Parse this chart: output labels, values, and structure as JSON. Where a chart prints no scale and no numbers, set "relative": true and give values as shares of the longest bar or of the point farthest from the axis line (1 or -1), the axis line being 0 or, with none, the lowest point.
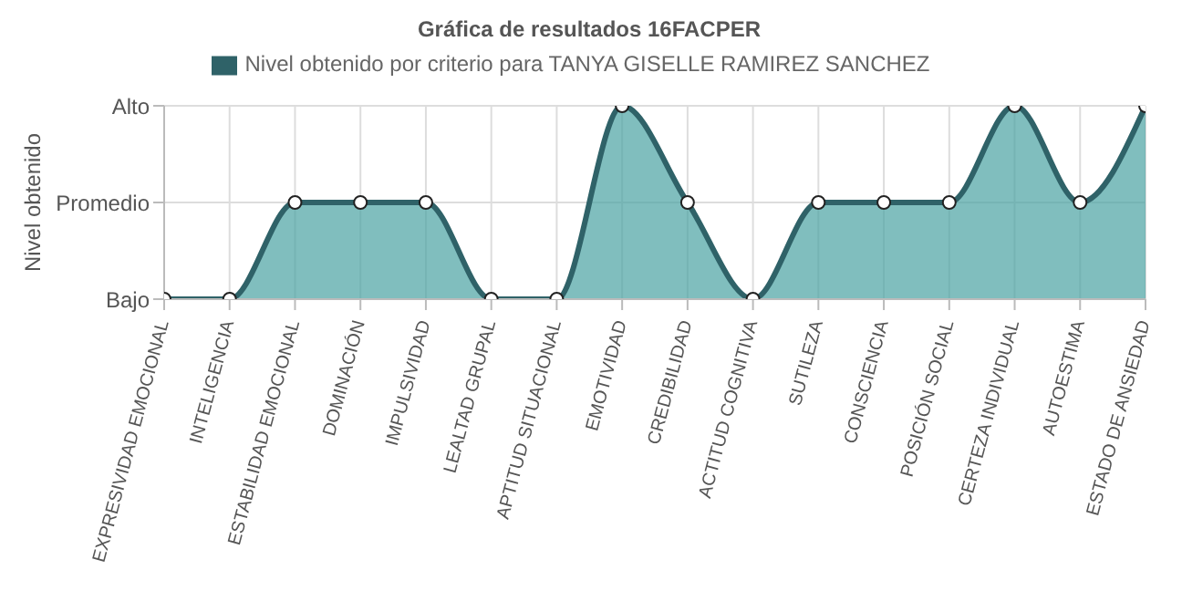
{
  "chart_data": {
    "type": "area",
    "title": "Gráfica de resultados 16FACPER",
    "ylabel": "Nivel obtenido",
    "categories": [
      "EXPRESIVIDAD EMOCIONAL",
      "INTELIGENCIA",
      "ESTABILIDAD EMOCIONAL",
      "DOMINACIÓN",
      "IMPULSIVIDAD",
      "LEALTAD GRUPAL",
      "APTITUD SITUACIONAL",
      "EMOTIVIDAD",
      "CREDIBILIDAD",
      "ACTITUD COGNITIVA",
      "SUTILEZA",
      "CONSCIENCIA",
      "POSICIÓN SOCIAL",
      "CERTEZA INDIVIDUAL",
      "AUTOESTIMA",
      "ESTADO DE ANSIEDAD"
    ],
    "series": [
      {
        "name": "Nivel obtenido por criterio para TANYA GISELLE RAMIREZ SANCHEZ",
        "color": "#2f6268",
        "values": [
          0,
          0,
          0.5,
          0.5,
          0.5,
          0,
          0,
          1,
          0.5,
          0,
          0.5,
          0.5,
          0.5,
          1,
          0.5,
          1
        ]
      }
    ],
    "relative": true,
    "y_categories": [
      "Alto",
      "Promedio",
      "Bajo"
    ],
    "grid": true,
    "legend": "top",
    "marker": "circle",
    "line_style": "solid"
  }
}
